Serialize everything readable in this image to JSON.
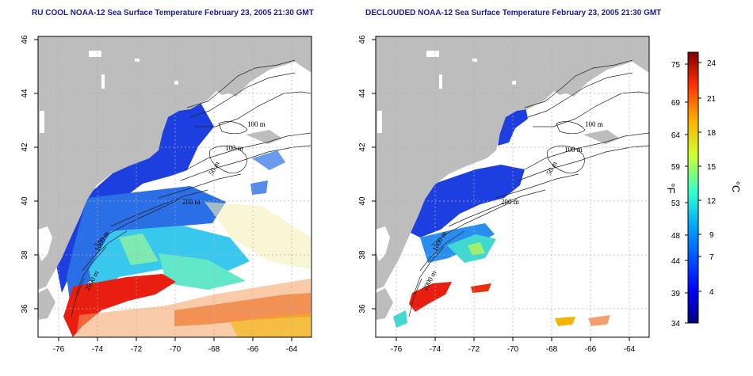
{
  "titles": {
    "left": "RU COOL NOAA-12 Sea Surface Temperature February 23, 2005 21:30 GMT",
    "right": "DECLOUDED NOAA-12 Sea Surface Temperature February 23, 2005 21:30 GMT"
  },
  "axes": {
    "x_ticks": [
      "-76",
      "-74",
      "-72",
      "-70",
      "-68",
      "-66",
      "-64"
    ],
    "y_ticks": [
      "36",
      "38",
      "40",
      "42",
      "44",
      "46"
    ]
  },
  "contour_labels": {
    "left": [
      "100 m",
      "100 m",
      "50 m",
      "200 m",
      "1000 m",
      "2000 m"
    ],
    "right": [
      "100 m",
      "100 m",
      "50 m",
      "200 m",
      "1000 m",
      "2000 m"
    ]
  },
  "colorbar": {
    "fahrenheit_label": "°F",
    "celsius_label": "°C",
    "fahrenheit_ticks": [
      "75",
      "69",
      "64",
      "59",
      "53",
      "48",
      "44",
      "39",
      "34"
    ],
    "celsius_ticks": [
      "24",
      "21",
      "18",
      "15",
      "12",
      "9",
      "7",
      "4"
    ]
  },
  "colors": {
    "land": "#bdbdbd",
    "title": "#1a1a9a",
    "grid": "#b0b0b0"
  }
}
